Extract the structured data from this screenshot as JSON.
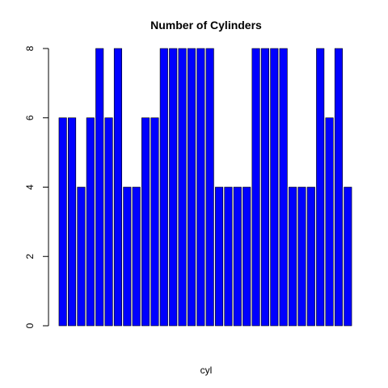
{
  "chart_data": {
    "type": "bar",
    "title": "Number of Cylinders",
    "xlabel": "cyl",
    "ylabel": "",
    "ylim": [
      0,
      8
    ],
    "yticks": [
      0,
      2,
      4,
      6,
      8
    ],
    "values": [
      6,
      6,
      4,
      6,
      8,
      6,
      8,
      4,
      4,
      6,
      6,
      8,
      8,
      8,
      8,
      8,
      8,
      4,
      4,
      4,
      4,
      8,
      8,
      8,
      8,
      4,
      4,
      4,
      8,
      6,
      8,
      4
    ],
    "bar_color": "#0000ff",
    "bar_border_color": "#000000",
    "grid": false,
    "legend": "none"
  }
}
